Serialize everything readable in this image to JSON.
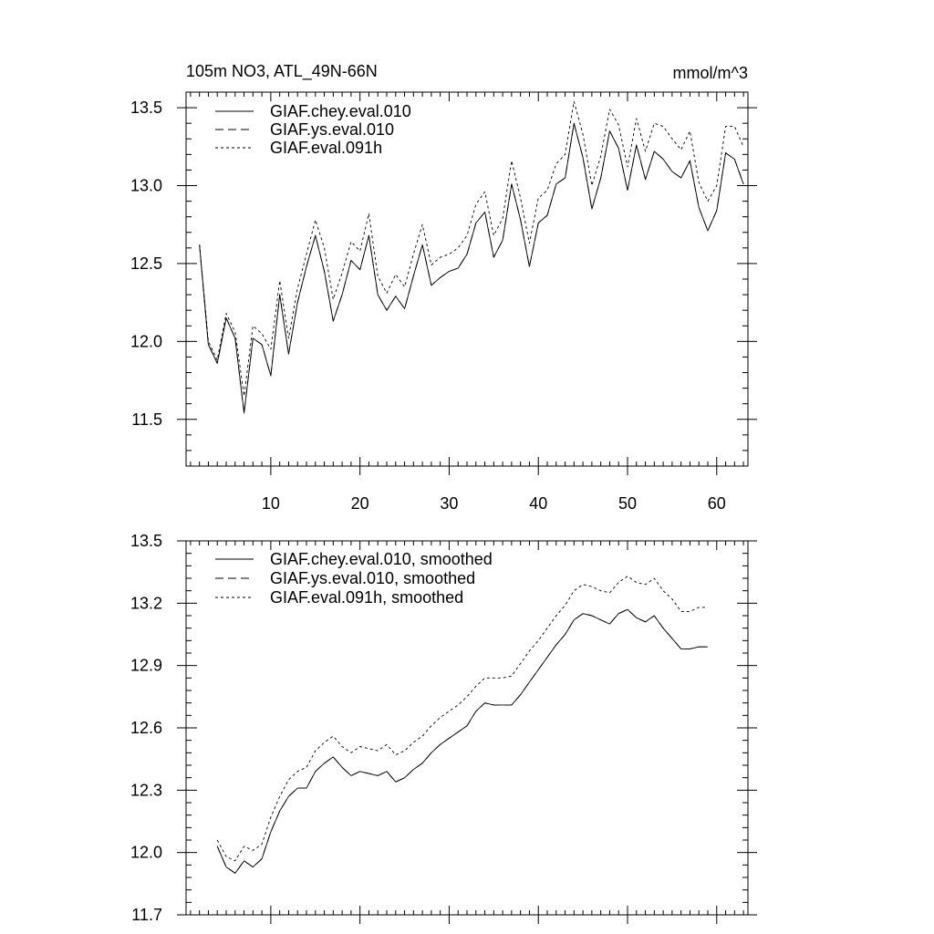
{
  "chart_data": [
    {
      "type": "line",
      "title": "105m NO3, ATL_49N-66N",
      "units": "mmol/m^3",
      "xlabel": "",
      "ylabel": "",
      "xlim": [
        0.5,
        63.5
      ],
      "ylim": [
        11.2,
        13.6
      ],
      "xticks": [
        10,
        20,
        30,
        40,
        50,
        60
      ],
      "yticks": [
        11.5,
        12.0,
        12.5,
        13.0,
        13.5
      ],
      "xtick_labels": [
        "10",
        "20",
        "30",
        "40",
        "50",
        "60"
      ],
      "ytick_labels": [
        "11.5",
        "12.0",
        "12.5",
        "13.0",
        "13.5"
      ],
      "legend": "top-left",
      "x_start": 2,
      "series": [
        {
          "name": "GIAF.chey.eval.010",
          "style": "solid",
          "values": [
            12.62,
            11.98,
            11.86,
            12.15,
            12.02,
            11.54,
            12.02,
            11.98,
            11.78,
            12.3,
            11.92,
            12.25,
            12.48,
            12.68,
            12.45,
            12.13,
            12.3,
            12.52,
            12.46,
            12.68,
            12.3,
            12.2,
            12.29,
            12.21,
            12.42,
            12.62,
            12.36,
            12.41,
            12.45,
            12.47,
            12.56,
            12.76,
            12.83,
            12.54,
            12.65,
            13.01,
            12.78,
            12.48,
            12.76,
            12.81,
            13.01,
            13.05,
            13.4,
            13.18,
            12.85,
            13.05,
            13.35,
            13.24,
            12.97,
            13.26,
            13.04,
            13.22,
            13.17,
            13.09,
            13.05,
            13.16,
            12.86,
            12.71,
            12.84,
            13.21,
            13.17,
            13.01
          ]
        },
        {
          "name": "GIAF.ys.eval.010",
          "style": "dashed",
          "values": [
            12.62,
            11.98,
            11.86,
            12.15,
            12.02,
            11.54,
            12.02,
            11.98,
            11.78,
            12.3,
            11.92,
            12.25,
            12.48,
            12.68,
            12.45,
            12.13,
            12.3,
            12.52,
            12.46,
            12.68,
            12.3,
            12.2,
            12.29,
            12.21,
            12.42,
            12.62,
            12.36,
            12.41,
            12.45,
            12.47,
            12.56,
            12.76,
            12.83,
            12.54,
            12.65,
            13.01,
            12.78,
            12.48,
            12.76,
            12.81,
            13.01,
            13.05,
            13.4,
            13.18,
            12.85,
            13.05,
            13.35,
            13.24,
            12.97,
            13.26,
            13.04,
            13.22,
            13.17,
            13.09,
            13.05,
            13.16,
            12.86,
            12.71,
            12.84,
            13.21,
            13.17,
            13.01
          ]
        },
        {
          "name": "GIAF.eval.091h",
          "style": "dotted",
          "values": [
            12.62,
            12.0,
            11.88,
            12.18,
            12.06,
            11.65,
            12.1,
            12.05,
            11.95,
            12.39,
            12.02,
            12.34,
            12.56,
            12.78,
            12.6,
            12.27,
            12.44,
            12.64,
            12.58,
            12.82,
            12.42,
            12.31,
            12.43,
            12.35,
            12.56,
            12.75,
            12.49,
            12.54,
            12.56,
            12.6,
            12.68,
            12.88,
            12.96,
            12.68,
            12.79,
            13.16,
            12.92,
            12.63,
            12.92,
            12.97,
            13.14,
            13.2,
            13.54,
            13.33,
            13.0,
            13.19,
            13.49,
            13.39,
            13.12,
            13.43,
            13.22,
            13.4,
            13.38,
            13.3,
            13.23,
            13.35,
            13.02,
            12.9,
            13.0,
            13.38,
            13.38,
            13.25
          ]
        }
      ]
    },
    {
      "type": "line",
      "title": "",
      "xlabel": "",
      "ylabel": "",
      "xlim": [
        0.5,
        63.5
      ],
      "ylim": [
        11.7,
        13.5
      ],
      "xticks": [
        10,
        20,
        30,
        40,
        50,
        60
      ],
      "yticks": [
        11.7,
        12.0,
        12.3,
        12.6,
        12.9,
        13.2,
        13.5
      ],
      "ytick_labels": [
        "11.7",
        "12.0",
        "12.3",
        "12.6",
        "12.9",
        "13.2",
        "13.5"
      ],
      "legend": "top-left",
      "x_start": 4,
      "series": [
        {
          "name": "GIAF.chey.eval.010, smoothed",
          "style": "solid",
          "values": [
            12.03,
            11.93,
            11.9,
            11.96,
            11.93,
            11.97,
            12.1,
            12.2,
            12.27,
            12.31,
            12.31,
            12.39,
            12.43,
            12.46,
            12.41,
            12.37,
            12.39,
            12.38,
            12.37,
            12.39,
            12.34,
            12.36,
            12.4,
            12.43,
            12.48,
            12.52,
            12.55,
            12.58,
            12.61,
            12.68,
            12.72,
            12.71,
            12.71,
            12.71,
            12.76,
            12.82,
            12.88,
            12.94,
            13.0,
            13.05,
            13.12,
            13.15,
            13.14,
            13.12,
            13.1,
            13.15,
            13.17,
            13.13,
            13.11,
            13.14,
            13.08,
            13.03,
            12.98,
            12.98,
            12.99,
            12.99
          ]
        },
        {
          "name": "GIAF.ys.eval.010, smoothed",
          "style": "dashed",
          "values": [
            12.03,
            11.93,
            11.9,
            11.96,
            11.93,
            11.97,
            12.1,
            12.2,
            12.27,
            12.31,
            12.31,
            12.39,
            12.43,
            12.46,
            12.41,
            12.37,
            12.39,
            12.38,
            12.37,
            12.39,
            12.34,
            12.36,
            12.4,
            12.43,
            12.48,
            12.52,
            12.55,
            12.58,
            12.61,
            12.68,
            12.72,
            12.71,
            12.71,
            12.71,
            12.76,
            12.82,
            12.88,
            12.94,
            13.0,
            13.05,
            13.12,
            13.15,
            13.14,
            13.12,
            13.1,
            13.15,
            13.17,
            13.13,
            13.11,
            13.14,
            13.08,
            13.03,
            12.98,
            12.98,
            12.99,
            12.99
          ]
        },
        {
          "name": "GIAF.eval.091h, smoothed",
          "style": "dotted",
          "values": [
            12.06,
            11.98,
            11.96,
            12.03,
            12.01,
            12.04,
            12.17,
            12.27,
            12.35,
            12.39,
            12.41,
            12.49,
            12.53,
            12.56,
            12.51,
            12.48,
            12.51,
            12.5,
            12.49,
            12.52,
            12.47,
            12.49,
            12.53,
            12.56,
            12.61,
            12.65,
            12.68,
            12.71,
            12.75,
            12.8,
            12.84,
            12.84,
            12.84,
            12.85,
            12.91,
            12.97,
            13.02,
            13.08,
            13.14,
            13.19,
            13.26,
            13.29,
            13.28,
            13.26,
            13.25,
            13.3,
            13.33,
            13.3,
            13.29,
            13.32,
            13.26,
            13.22,
            13.16,
            13.16,
            13.18,
            13.18
          ]
        }
      ]
    }
  ]
}
